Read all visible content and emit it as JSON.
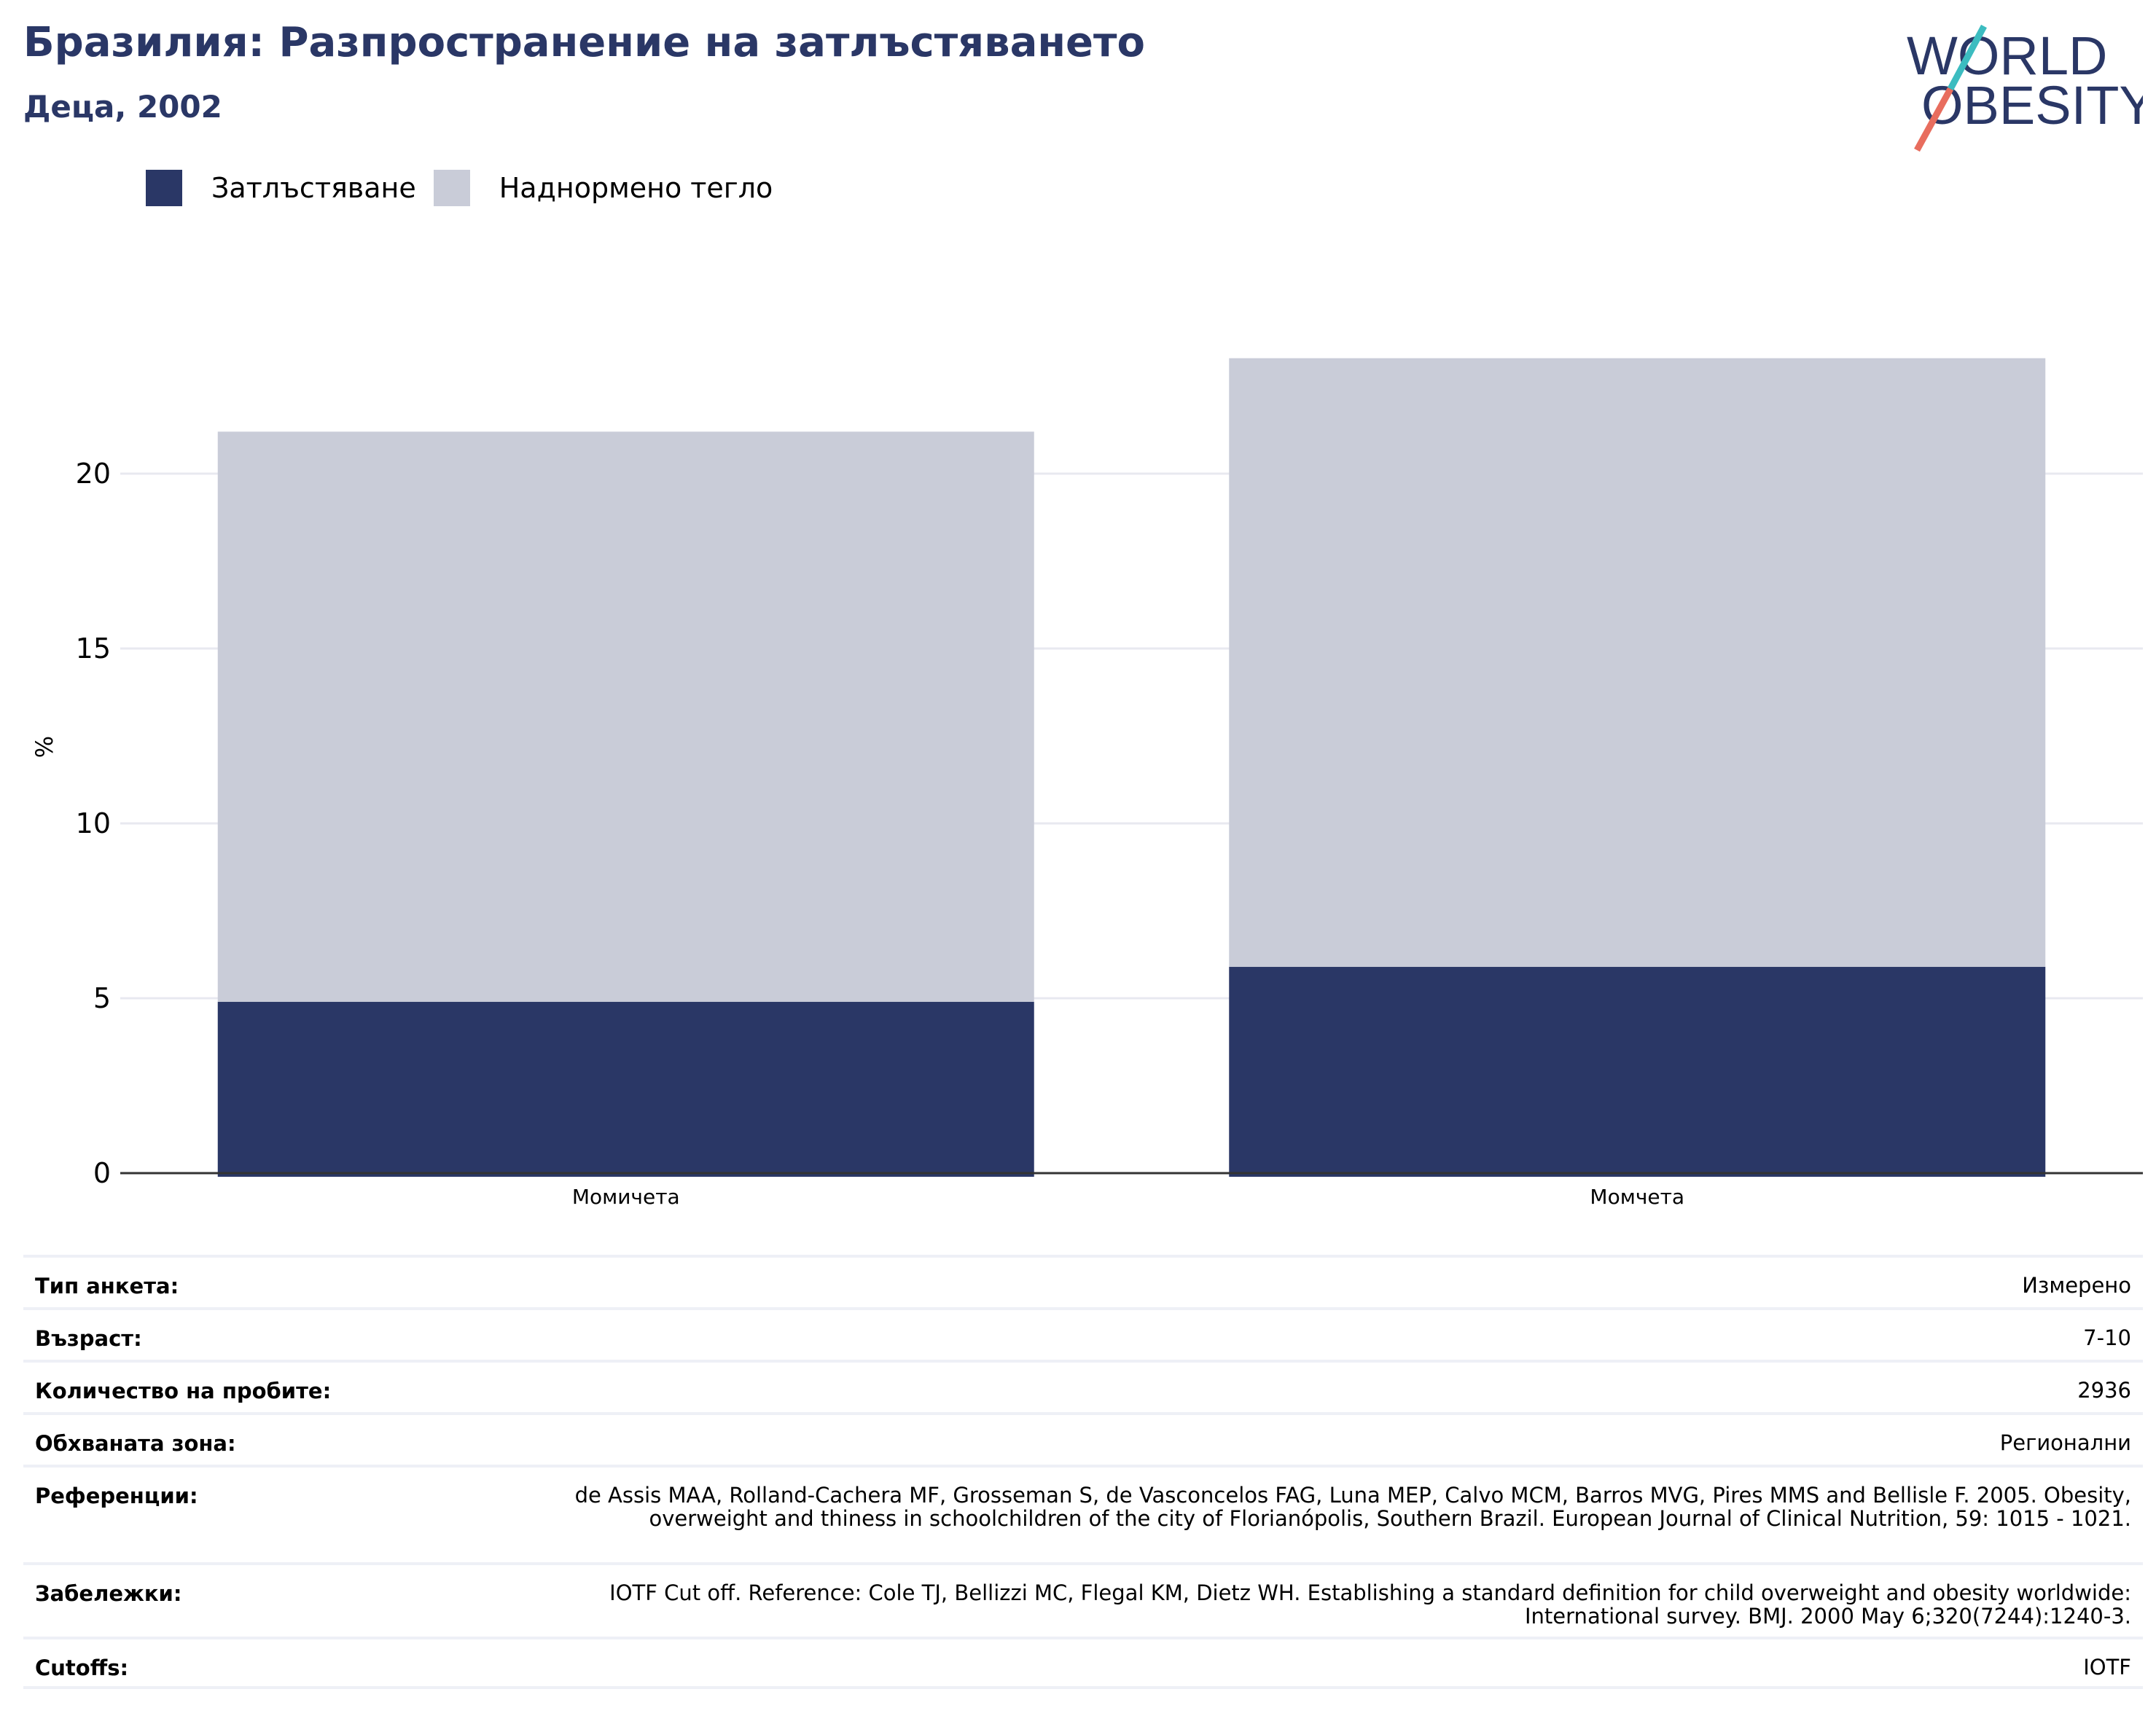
{
  "header": {
    "title": "Бразилия: Разпространение на затлъстяването",
    "subtitle": "Деца, 2002"
  },
  "logo": {
    "line1": "WORLD",
    "line2": "OBESITY"
  },
  "chart_data": {
    "type": "bar",
    "stacked": true,
    "categories": [
      "Момичета",
      "Момчета"
    ],
    "series": [
      {
        "name": "Затлъстяване",
        "values": [
          4.9,
          5.9
        ],
        "color": "#2a3766"
      },
      {
        "name": "Наднормено тегло",
        "values": [
          16.3,
          17.4
        ],
        "color": "#c9ccd8"
      }
    ],
    "ylabel": "%",
    "ylim": [
      0,
      24
    ],
    "yticks": [
      0,
      5,
      10,
      15,
      20
    ],
    "grid": true,
    "legend": "top-left"
  },
  "info": {
    "rows": [
      {
        "key": "Тип анкета:",
        "value": "Измерено"
      },
      {
        "key": "Възраст:",
        "value": "7-10"
      },
      {
        "key": "Количество на пробите:",
        "value": "2936"
      },
      {
        "key": "Обхваната зона:",
        "value": "Регионални"
      },
      {
        "key": "Референции:",
        "value": "de Assis MAA, Rolland-Cachera MF, Grosseman S, de Vasconcelos FAG, Luna MEP, Calvo MCM, Barros MVG, Pires MMS and Bellisle F. 2005. Obesity, overweight and thiness in schoolchildren of the city of Florianópolis, Southern Brazil. European Journal of Clinical Nutrition, 59: 1015 - 1021."
      },
      {
        "key": "Забележки:",
        "value": "IOTF Cut off. Reference: Cole TJ, Bellizzi MC, Flegal KM, Dietz WH. Establishing a standard definition for child overweight and obesity worldwide: International survey. BMJ. 2000 May 6;320(7244):1240-3."
      },
      {
        "key": "Cutoffs:",
        "value": "IOTF"
      }
    ]
  }
}
